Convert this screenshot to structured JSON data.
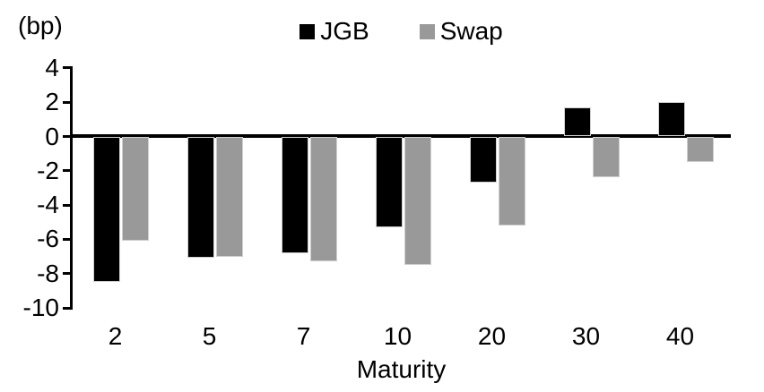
{
  "chart_data": {
    "type": "bar",
    "title": "",
    "xlabel": "Maturity",
    "ylabel": "(bp)",
    "categories": [
      "2",
      "5",
      "7",
      "10",
      "20",
      "30",
      "40"
    ],
    "series": [
      {
        "name": "JGB",
        "color": "#000000",
        "values": [
          -8.5,
          -7.1,
          -6.8,
          -5.3,
          -2.7,
          1.7,
          2.0
        ]
      },
      {
        "name": "Swap",
        "color": "#999999",
        "values": [
          -6.1,
          -7.0,
          -7.3,
          -7.5,
          -5.2,
          -2.4,
          -1.5
        ]
      }
    ],
    "ylim": [
      -10,
      4
    ],
    "yticks": [
      4,
      2,
      0,
      -2,
      -4,
      -6,
      -8,
      -10
    ],
    "grid": false,
    "legend_position": "top-center"
  }
}
